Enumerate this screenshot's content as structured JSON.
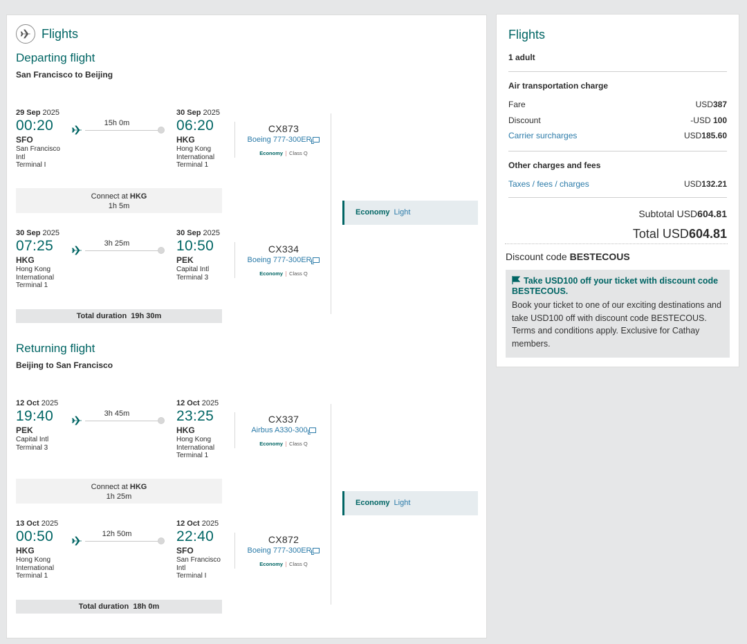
{
  "left": {
    "title": "Flights",
    "departing": {
      "heading": "Departing flight",
      "route": "San Francisco to Beijing",
      "segments": [
        {
          "dep_day": "29 Sep",
          "dep_year": "2025",
          "dep_time": "00:20",
          "dep_code": "SFO",
          "dep_airport": "San Francisco Intl",
          "dep_terminal": "Terminal I",
          "duration": "15h 0m",
          "arr_day": "30 Sep",
          "arr_year": "2025",
          "arr_time": "06:20",
          "arr_code": "HKG",
          "arr_airport": "Hong Kong International",
          "arr_terminal": "Terminal 1",
          "flight_no": "CX873",
          "aircraft": "Boeing 777-300ER",
          "cabin": "Economy",
          "class": "Class Q"
        },
        {
          "dep_day": "30 Sep",
          "dep_year": "2025",
          "dep_time": "07:25",
          "dep_code": "HKG",
          "dep_airport": "Hong Kong International",
          "dep_terminal": "Terminal 1",
          "duration": "3h 25m",
          "arr_day": "30 Sep",
          "arr_year": "2025",
          "arr_time": "10:50",
          "arr_code": "PEK",
          "arr_airport": "Capital Intl",
          "arr_terminal": "Terminal 3",
          "flight_no": "CX334",
          "aircraft": "Boeing 777-300ER",
          "cabin": "Economy",
          "class": "Class Q"
        }
      ],
      "connect_prefix": "Connect at",
      "connect_code": "HKG",
      "connect_time": "1h 5m",
      "total_label": "Total duration",
      "total_value": "19h 30m",
      "fare_cabin": "Economy",
      "fare_brand": "Light"
    },
    "returning": {
      "heading": "Returning flight",
      "route": "Beijing to San Francisco",
      "segments": [
        {
          "dep_day": "12 Oct",
          "dep_year": "2025",
          "dep_time": "19:40",
          "dep_code": "PEK",
          "dep_airport": "Capital Intl",
          "dep_terminal": "Terminal 3",
          "duration": "3h 45m",
          "arr_day": "12 Oct",
          "arr_year": "2025",
          "arr_time": "23:25",
          "arr_code": "HKG",
          "arr_airport": "Hong Kong International",
          "arr_terminal": "Terminal 1",
          "flight_no": "CX337",
          "aircraft": "Airbus A330-300",
          "cabin": "Economy",
          "class": "Class Q"
        },
        {
          "dep_day": "13 Oct",
          "dep_year": "2025",
          "dep_time": "00:50",
          "dep_code": "HKG",
          "dep_airport": "Hong Kong International",
          "dep_terminal": "Terminal 1",
          "duration": "12h 50m",
          "arr_day": "12 Oct",
          "arr_year": "2025",
          "arr_time": "22:40",
          "arr_code": "SFO",
          "arr_airport": "San Francisco Intl",
          "arr_terminal": "Terminal I",
          "flight_no": "CX872",
          "aircraft": "Boeing 777-300ER",
          "cabin": "Economy",
          "class": "Class Q"
        }
      ],
      "connect_prefix": "Connect at",
      "connect_code": "HKG",
      "connect_time": "1h 25m",
      "total_label": "Total duration",
      "total_value": "18h 0m",
      "fare_cabin": "Economy",
      "fare_brand": "Light"
    }
  },
  "summary": {
    "title": "Flights",
    "passengers": "1 adult",
    "air_heading": "Air transportation charge",
    "fare_label": "Fare",
    "fare_cur": "USD",
    "fare_amt": "387",
    "discount_label": "Discount",
    "discount_cur": "-USD ",
    "discount_amt": "100",
    "surcharge_label": "Carrier surcharges",
    "surcharge_cur": "USD",
    "surcharge_amt": "185.60",
    "other_heading": "Other charges and fees",
    "taxes_label": "Taxes / fees / charges",
    "taxes_cur": "USD",
    "taxes_amt": "132.21",
    "subtotal_label": "Subtotal USD",
    "subtotal_amt": "604.81",
    "total_label": "Total USD",
    "total_amt": "604.81",
    "discount_code_label": "Discount code",
    "discount_code": "BESTECOUS",
    "promo_heading": "Take USD100 off your ticket with discount code BESTECOUS.",
    "promo_body": "Book your ticket to one of our exciting destinations and take USD100 off with discount code BESTECOUS. Terms and conditions apply. Exclusive for Cathay members."
  },
  "colors": {
    "brand": "#006564",
    "link": "#2a7aa8",
    "background": "#e6e7e8"
  }
}
